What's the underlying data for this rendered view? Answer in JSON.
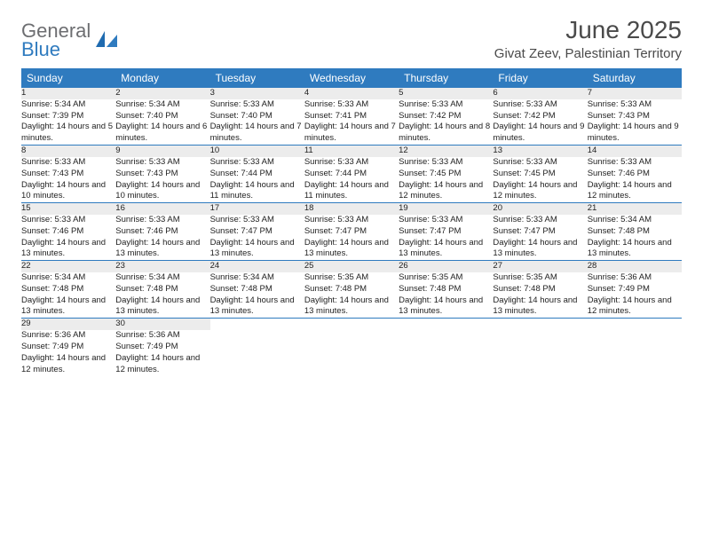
{
  "brand": {
    "part1": "General",
    "part2": "Blue"
  },
  "title": "June 2025",
  "location": "Givat Zeev, Palestinian Territory",
  "colors": {
    "header_bg": "#2f7bbf",
    "header_text": "#ffffff",
    "daynum_bg": "#ececec",
    "body_text": "#222222",
    "rule": "#2f7bbf",
    "page_bg": "#ffffff"
  },
  "weekdays": [
    "Sunday",
    "Monday",
    "Tuesday",
    "Wednesday",
    "Thursday",
    "Friday",
    "Saturday"
  ],
  "weeks": [
    [
      {
        "n": "1",
        "sunrise": "5:34 AM",
        "sunset": "7:39 PM",
        "daylight": "14 hours and 5 minutes."
      },
      {
        "n": "2",
        "sunrise": "5:34 AM",
        "sunset": "7:40 PM",
        "daylight": "14 hours and 6 minutes."
      },
      {
        "n": "3",
        "sunrise": "5:33 AM",
        "sunset": "7:40 PM",
        "daylight": "14 hours and 7 minutes."
      },
      {
        "n": "4",
        "sunrise": "5:33 AM",
        "sunset": "7:41 PM",
        "daylight": "14 hours and 7 minutes."
      },
      {
        "n": "5",
        "sunrise": "5:33 AM",
        "sunset": "7:42 PM",
        "daylight": "14 hours and 8 minutes."
      },
      {
        "n": "6",
        "sunrise": "5:33 AM",
        "sunset": "7:42 PM",
        "daylight": "14 hours and 9 minutes."
      },
      {
        "n": "7",
        "sunrise": "5:33 AM",
        "sunset": "7:43 PM",
        "daylight": "14 hours and 9 minutes."
      }
    ],
    [
      {
        "n": "8",
        "sunrise": "5:33 AM",
        "sunset": "7:43 PM",
        "daylight": "14 hours and 10 minutes."
      },
      {
        "n": "9",
        "sunrise": "5:33 AM",
        "sunset": "7:43 PM",
        "daylight": "14 hours and 10 minutes."
      },
      {
        "n": "10",
        "sunrise": "5:33 AM",
        "sunset": "7:44 PM",
        "daylight": "14 hours and 11 minutes."
      },
      {
        "n": "11",
        "sunrise": "5:33 AM",
        "sunset": "7:44 PM",
        "daylight": "14 hours and 11 minutes."
      },
      {
        "n": "12",
        "sunrise": "5:33 AM",
        "sunset": "7:45 PM",
        "daylight": "14 hours and 12 minutes."
      },
      {
        "n": "13",
        "sunrise": "5:33 AM",
        "sunset": "7:45 PM",
        "daylight": "14 hours and 12 minutes."
      },
      {
        "n": "14",
        "sunrise": "5:33 AM",
        "sunset": "7:46 PM",
        "daylight": "14 hours and 12 minutes."
      }
    ],
    [
      {
        "n": "15",
        "sunrise": "5:33 AM",
        "sunset": "7:46 PM",
        "daylight": "14 hours and 13 minutes."
      },
      {
        "n": "16",
        "sunrise": "5:33 AM",
        "sunset": "7:46 PM",
        "daylight": "14 hours and 13 minutes."
      },
      {
        "n": "17",
        "sunrise": "5:33 AM",
        "sunset": "7:47 PM",
        "daylight": "14 hours and 13 minutes."
      },
      {
        "n": "18",
        "sunrise": "5:33 AM",
        "sunset": "7:47 PM",
        "daylight": "14 hours and 13 minutes."
      },
      {
        "n": "19",
        "sunrise": "5:33 AM",
        "sunset": "7:47 PM",
        "daylight": "14 hours and 13 minutes."
      },
      {
        "n": "20",
        "sunrise": "5:33 AM",
        "sunset": "7:47 PM",
        "daylight": "14 hours and 13 minutes."
      },
      {
        "n": "21",
        "sunrise": "5:34 AM",
        "sunset": "7:48 PM",
        "daylight": "14 hours and 13 minutes."
      }
    ],
    [
      {
        "n": "22",
        "sunrise": "5:34 AM",
        "sunset": "7:48 PM",
        "daylight": "14 hours and 13 minutes."
      },
      {
        "n": "23",
        "sunrise": "5:34 AM",
        "sunset": "7:48 PM",
        "daylight": "14 hours and 13 minutes."
      },
      {
        "n": "24",
        "sunrise": "5:34 AM",
        "sunset": "7:48 PM",
        "daylight": "14 hours and 13 minutes."
      },
      {
        "n": "25",
        "sunrise": "5:35 AM",
        "sunset": "7:48 PM",
        "daylight": "14 hours and 13 minutes."
      },
      {
        "n": "26",
        "sunrise": "5:35 AM",
        "sunset": "7:48 PM",
        "daylight": "14 hours and 13 minutes."
      },
      {
        "n": "27",
        "sunrise": "5:35 AM",
        "sunset": "7:48 PM",
        "daylight": "14 hours and 13 minutes."
      },
      {
        "n": "28",
        "sunrise": "5:36 AM",
        "sunset": "7:49 PM",
        "daylight": "14 hours and 12 minutes."
      }
    ],
    [
      {
        "n": "29",
        "sunrise": "5:36 AM",
        "sunset": "7:49 PM",
        "daylight": "14 hours and 12 minutes."
      },
      {
        "n": "30",
        "sunrise": "5:36 AM",
        "sunset": "7:49 PM",
        "daylight": "14 hours and 12 minutes."
      },
      null,
      null,
      null,
      null,
      null
    ]
  ],
  "labels": {
    "sunrise": "Sunrise:",
    "sunset": "Sunset:",
    "daylight": "Daylight:"
  }
}
